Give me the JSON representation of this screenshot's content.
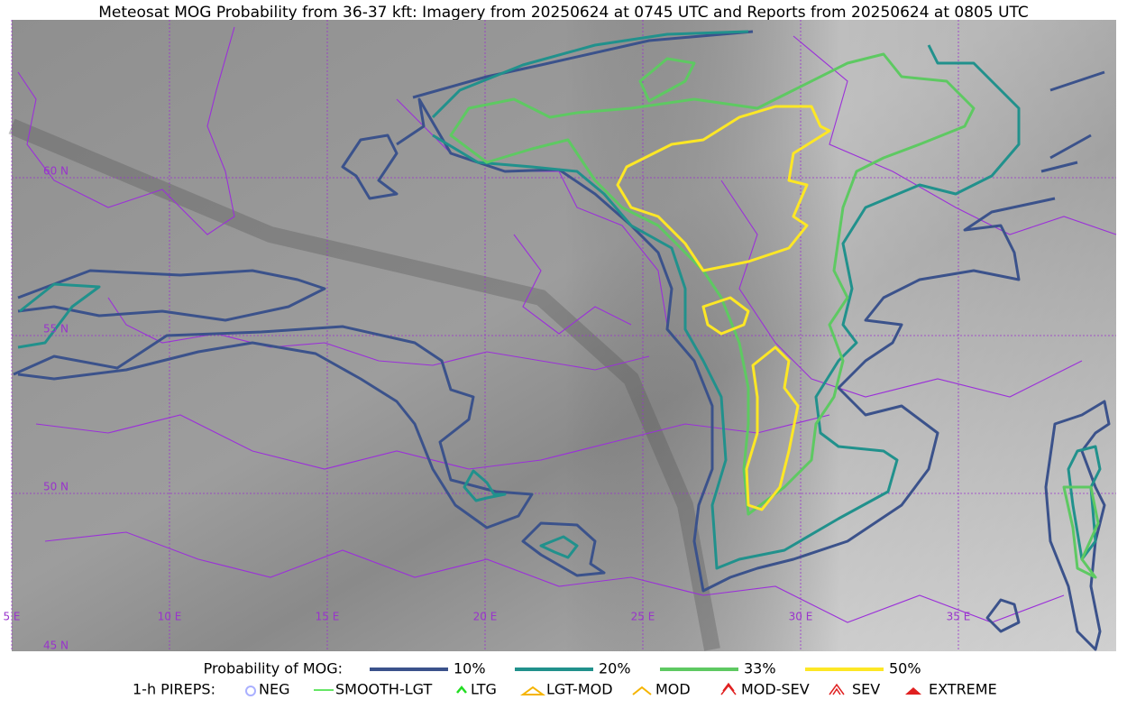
{
  "title": "Meteosat MOG Probability from 36-37 kft: Imagery from 20250624 at 0745 UTC and Reports from 20250624 at 0805 UTC",
  "lat_labels": [
    "60 N",
    "55 N",
    "50 N",
    "45 N"
  ],
  "lon_labels": [
    "5 E",
    "10 E",
    "15 E",
    "20 E",
    "25 E",
    "30 E",
    "35 E"
  ],
  "legend": {
    "label": "Probability of MOG:",
    "levels": [
      {
        "label": "10%",
        "color": "#3b528b"
      },
      {
        "label": "20%",
        "color": "#21918c"
      },
      {
        "label": "33%",
        "color": "#5ec962"
      },
      {
        "label": "50%",
        "color": "#fde725"
      }
    ]
  },
  "pireps": {
    "label": "1-h PIREPS:",
    "items": [
      "NEG",
      "SMOOTH-LGT",
      "LTG",
      "LGT-MOD",
      "MOD",
      "MOD-SEV",
      "SEV",
      "EXTREME"
    ]
  }
}
